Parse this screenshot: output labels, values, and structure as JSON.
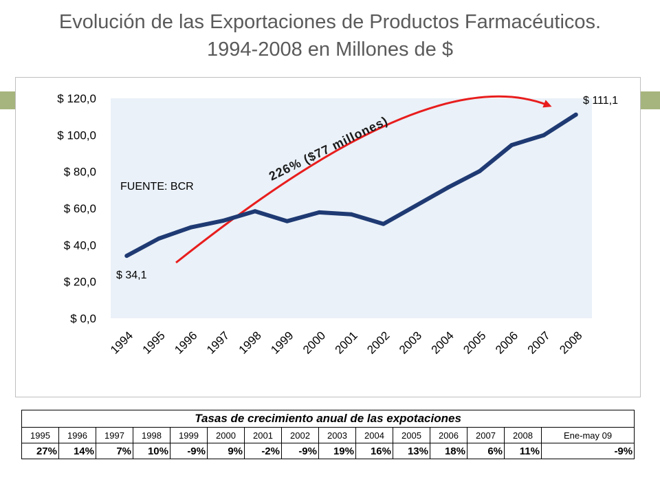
{
  "title": {
    "line1": "Evolución de las Exportaciones de Productos Farmacéuticos.",
    "line2": "1994-2008  en Millones de $"
  },
  "chart_data": {
    "type": "line",
    "x": [
      "1994",
      "1995",
      "1996",
      "1997",
      "1998",
      "1999",
      "2000",
      "2001",
      "2002",
      "2003",
      "2004",
      "2005",
      "2006",
      "2007",
      "2008"
    ],
    "series": [
      {
        "values": [
          34.1,
          43.5,
          49.6,
          53.2,
          58.4,
          53.0,
          57.8,
          56.7,
          51.5,
          61.3,
          71.2,
          80.3,
          94.5,
          99.9,
          111.1
        ]
      }
    ],
    "ylim": [
      0,
      120
    ],
    "yticks": [
      "$ 0,0",
      "$ 20,0",
      "$ 40,0",
      "$ 60,0",
      "$ 80,0",
      "$ 100,0",
      "$ 120,0"
    ],
    "grid": false,
    "line_color": "#1f3a73",
    "plot_background": "#eaf1f8",
    "labels": {
      "start": "$ 34,1",
      "end": "$ 111,1",
      "source": "FUENTE: BCR",
      "growth": "226% ($77 millones)"
    },
    "growth_arrow_color": "#e81d1d"
  },
  "table": {
    "title": "Tasas de crecimiento anual de las expotaciones",
    "years": [
      "1995",
      "1996",
      "1997",
      "1998",
      "1999",
      "2000",
      "2001",
      "2002",
      "2003",
      "2004",
      "2005",
      "2006",
      "2007",
      "2008",
      "Ene-may 09"
    ],
    "values": [
      "27%",
      "14%",
      "7%",
      "10%",
      "-9%",
      "9%",
      "-2%",
      "-9%",
      "19%",
      "16%",
      "13%",
      "18%",
      "6%",
      "11%",
      "-9%"
    ]
  },
  "accent_color": "#a6b57e"
}
